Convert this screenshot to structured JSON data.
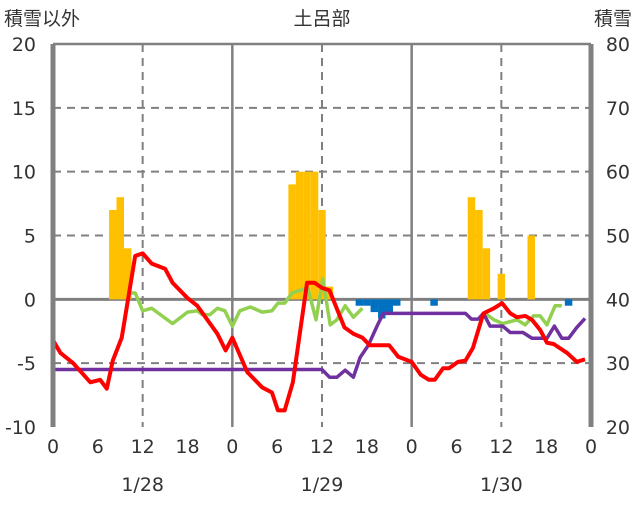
{
  "chart_data": {
    "type": "bar+line",
    "title": "土呂部",
    "left_axis_label": "積雪以外",
    "right_axis_label": "積雪",
    "left_ylim": [
      -10,
      20
    ],
    "left_ticks": [
      "20",
      "15",
      "10",
      "5",
      "0",
      "-5",
      "-10"
    ],
    "right_ylim": [
      20,
      80
    ],
    "right_ticks": [
      "80",
      "70",
      "60",
      "50",
      "40",
      "30",
      "20"
    ],
    "x_range_hours": [
      0,
      72
    ],
    "x_tick_labels": [
      "0",
      "6",
      "12",
      "18",
      "0",
      "6",
      "12",
      "18",
      "0",
      "6",
      "12",
      "18",
      "0"
    ],
    "dates": [
      "1/28",
      "1/29",
      "1/30"
    ],
    "grid": "dashed, every 5 units and every 12 hours",
    "series": [
      {
        "name": "yellow bars",
        "kind": "bar",
        "axis": "left",
        "color": "#FFC000",
        "points": [
          [
            8,
            7
          ],
          [
            9,
            8
          ],
          [
            10,
            4
          ],
          [
            32,
            9
          ],
          [
            33,
            10
          ],
          [
            34,
            10
          ],
          [
            35,
            10
          ],
          [
            36,
            7
          ],
          [
            37,
            1
          ],
          [
            56,
            8
          ],
          [
            57,
            7
          ],
          [
            58,
            4
          ],
          [
            60,
            2
          ],
          [
            64,
            5
          ]
        ]
      },
      {
        "name": "blue bars",
        "kind": "bar",
        "axis": "left",
        "color": "#0070C0",
        "points": [
          [
            41,
            -0.5
          ],
          [
            42,
            -0.5
          ],
          [
            43,
            -1
          ],
          [
            44,
            -1.5
          ],
          [
            45,
            -1
          ],
          [
            46,
            -0.5
          ],
          [
            51,
            -0.5
          ],
          [
            69,
            -0.5
          ]
        ]
      },
      {
        "name": "red line",
        "kind": "line",
        "axis": "left",
        "color": "#FF0000",
        "points": [
          [
            0,
            -3.2
          ],
          [
            1,
            -4.2
          ],
          [
            2.7,
            -5
          ],
          [
            5,
            -6.5
          ],
          [
            6.3,
            -6.3
          ],
          [
            7.2,
            -7
          ],
          [
            8,
            -4.8
          ],
          [
            9.2,
            -3
          ],
          [
            11,
            3.4
          ],
          [
            12,
            3.6
          ],
          [
            13.2,
            2.8
          ],
          [
            15,
            2.4
          ],
          [
            16,
            1.3
          ],
          [
            18,
            0.1
          ],
          [
            19.3,
            -0.5
          ],
          [
            22,
            -2.7
          ],
          [
            23.1,
            -4
          ],
          [
            24,
            -3
          ],
          [
            26,
            -5.7
          ],
          [
            28,
            -6.9
          ],
          [
            29.3,
            -7.3
          ],
          [
            30.1,
            -8.7
          ],
          [
            31,
            -8.7
          ],
          [
            32.1,
            -6.5
          ],
          [
            34,
            1.3
          ],
          [
            35,
            1.3
          ],
          [
            36,
            0.9
          ],
          [
            37,
            0.7
          ],
          [
            39,
            -2.2
          ],
          [
            40.2,
            -2.7
          ],
          [
            41.4,
            -3
          ],
          [
            42.4,
            -3.6
          ],
          [
            45,
            -3.6
          ],
          [
            46.2,
            -4.5
          ],
          [
            48,
            -4.9
          ],
          [
            49.2,
            -5.9
          ],
          [
            50.3,
            -6.3
          ],
          [
            51.1,
            -6.3
          ],
          [
            52.2,
            -5.4
          ],
          [
            53,
            -5.4
          ],
          [
            54.2,
            -4.9
          ],
          [
            55.2,
            -4.8
          ],
          [
            56.2,
            -3.8
          ],
          [
            57.6,
            -1.1
          ],
          [
            59,
            -0.7
          ],
          [
            60.1,
            -0.3
          ],
          [
            61.2,
            -1.1
          ],
          [
            62.1,
            -1.4
          ],
          [
            63.2,
            -1.3
          ],
          [
            64.1,
            -1.6
          ],
          [
            65.2,
            -2.4
          ],
          [
            66.1,
            -3.4
          ],
          [
            67,
            -3.5
          ],
          [
            68.8,
            -4.2
          ],
          [
            70.1,
            -4.9
          ],
          [
            71.2,
            -4.7
          ]
        ]
      },
      {
        "name": "green line",
        "kind": "line",
        "axis": "left",
        "color": "#92D050",
        "segments": [
          [
            [
              10,
              0.5
            ],
            [
              11,
              0.5
            ],
            [
              12,
              -0.9
            ],
            [
              13.2,
              -0.7
            ],
            [
              16,
              -1.9
            ],
            [
              18,
              -1
            ],
            [
              19.3,
              -0.9
            ],
            [
              20,
              -1.2
            ],
            [
              21,
              -1.2
            ],
            [
              22,
              -0.7
            ],
            [
              23,
              -0.9
            ],
            [
              24,
              -2.1
            ],
            [
              25,
              -0.9
            ],
            [
              26.4,
              -0.6
            ],
            [
              28,
              -1
            ],
            [
              29.3,
              -0.9
            ],
            [
              30.1,
              -0.3
            ],
            [
              31,
              -0.3
            ],
            [
              32,
              0.5
            ],
            [
              34.1,
              0.9
            ],
            [
              35.2,
              -1.6
            ],
            [
              36.1,
              1.6
            ],
            [
              37.1,
              -2
            ],
            [
              38,
              -1.6
            ],
            [
              39.1,
              -0.5
            ],
            [
              40.2,
              -1.4
            ],
            [
              41.4,
              -0.7
            ]
          ],
          [
            [
              57.6,
              -1
            ],
            [
              59,
              -1.6
            ],
            [
              60.2,
              -1.9
            ],
            [
              62.1,
              -1.6
            ],
            [
              63.2,
              -2
            ],
            [
              64.3,
              -1.3
            ],
            [
              65.2,
              -1.3
            ],
            [
              66.1,
              -2
            ],
            [
              67.2,
              -0.5
            ],
            [
              68.1,
              -0.5
            ]
          ]
        ]
      },
      {
        "name": "purple line",
        "kind": "line",
        "axis": "right",
        "color": "#7030A0",
        "points": [
          [
            0,
            29
          ],
          [
            36,
            29
          ],
          [
            37,
            27.8
          ],
          [
            38,
            27.8
          ],
          [
            39.1,
            28.9
          ],
          [
            40.2,
            27.8
          ],
          [
            41.1,
            30.9
          ],
          [
            42.2,
            32.8
          ],
          [
            43.4,
            35.9
          ],
          [
            44.2,
            37.8
          ],
          [
            55.2,
            37.8
          ],
          [
            56,
            36.9
          ],
          [
            56.9,
            36.9
          ],
          [
            57.6,
            37.8
          ],
          [
            58.5,
            35.8
          ],
          [
            60.2,
            35.8
          ],
          [
            61.2,
            34.8
          ],
          [
            62.9,
            34.8
          ],
          [
            64.1,
            33.9
          ],
          [
            66.1,
            33.9
          ],
          [
            67.1,
            35.8
          ],
          [
            68.1,
            33.9
          ],
          [
            69,
            33.9
          ],
          [
            70.1,
            35.6
          ],
          [
            71.2,
            37
          ]
        ]
      }
    ]
  }
}
